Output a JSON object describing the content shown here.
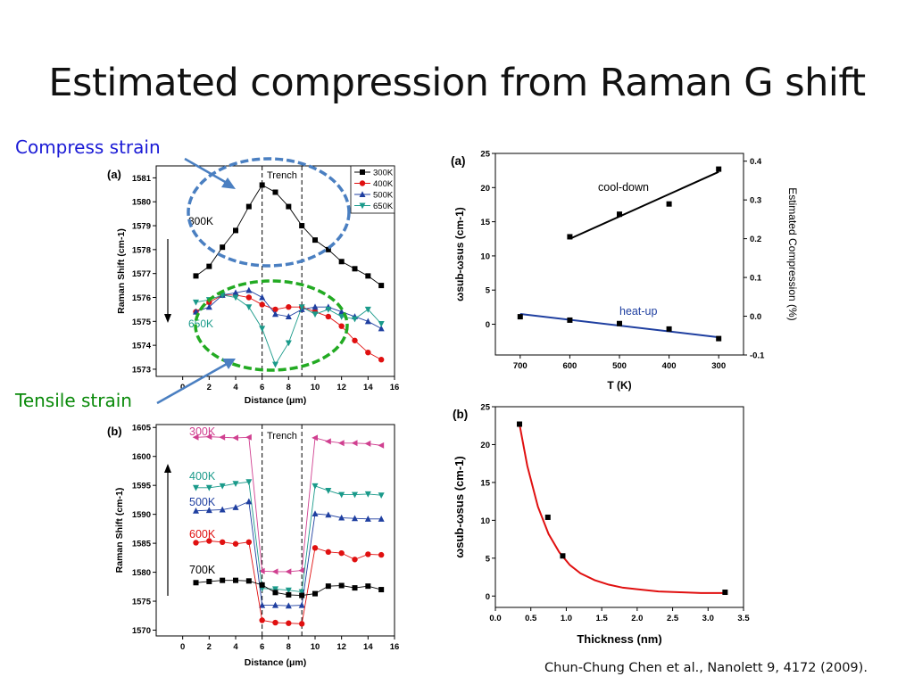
{
  "slide": {
    "title": "Estimated compression from Raman G shift",
    "compress_label": "Compress strain",
    "tensile_label": "Tensile strain",
    "citation": "Chun-Chung Chen et al., Nanolett 9, 4172 (2009)."
  },
  "colors": {
    "compress_label": "#1a1ad6",
    "tensile_label": "#0a8a0a",
    "ellipse_blue": "#4a7fc1",
    "ellipse_green": "#22aa22",
    "fit_red": "#e01010",
    "fit_blue": "#1f3fa0"
  },
  "chart_data": [
    {
      "id": "left-a",
      "panel": "(a)",
      "type": "line",
      "xlabel": "Distance (μm)",
      "ylabel": "Raman Shift (cm-1)",
      "xlim": [
        -2,
        16
      ],
      "ylim": [
        1572.7,
        1581.5
      ],
      "xticks": [
        0,
        2,
        4,
        6,
        8,
        10,
        12,
        14,
        16
      ],
      "yticks": [
        1573,
        1574,
        1575,
        1576,
        1577,
        1578,
        1579,
        1580,
        1581
      ],
      "trench_label": "Trench",
      "trench_x": [
        6,
        9
      ],
      "annotations": [
        "300K",
        "650K"
      ],
      "legend": [
        "300K",
        "400K",
        "500K",
        "650K"
      ],
      "series": [
        {
          "name": "300K",
          "color": "#000000",
          "marker": "square",
          "x": [
            1,
            2,
            3,
            4,
            5,
            6,
            7,
            8,
            9,
            10,
            11,
            12,
            13,
            14,
            15
          ],
          "y": [
            1576.9,
            1577.3,
            1578.1,
            1578.8,
            1579.8,
            1580.7,
            1580.4,
            1579.8,
            1579.0,
            1578.4,
            1578.0,
            1577.5,
            1577.2,
            1576.9,
            1576.5
          ]
        },
        {
          "name": "400K",
          "color": "#e01010",
          "marker": "circle",
          "x": [
            1,
            2,
            3,
            4,
            5,
            6,
            7,
            8,
            9,
            10,
            11,
            12,
            13,
            14,
            15
          ],
          "y": [
            1575.4,
            1575.8,
            1576.1,
            1576.1,
            1576.0,
            1575.7,
            1575.5,
            1575.6,
            1575.6,
            1575.4,
            1575.2,
            1574.8,
            1574.2,
            1573.7,
            1573.4
          ]
        },
        {
          "name": "500K",
          "color": "#1f3fa0",
          "marker": "triangle-up",
          "x": [
            1,
            2,
            3,
            4,
            5,
            6,
            7,
            8,
            9,
            10,
            11,
            12,
            13,
            14,
            15
          ],
          "y": [
            1575.4,
            1575.6,
            1576.1,
            1576.2,
            1576.3,
            1576.0,
            1575.3,
            1575.2,
            1575.5,
            1575.6,
            1575.6,
            1575.4,
            1575.2,
            1575.0,
            1574.7
          ]
        },
        {
          "name": "650K",
          "color": "#1a9a8a",
          "marker": "triangle-down",
          "x": [
            1,
            2,
            3,
            4,
            5,
            6,
            7,
            8,
            9,
            10,
            11,
            12,
            13,
            14,
            15
          ],
          "y": [
            1575.8,
            1575.9,
            1576.1,
            1576.0,
            1575.6,
            1574.7,
            1573.2,
            1574.1,
            1575.6,
            1575.3,
            1575.5,
            1575.2,
            1575.1,
            1575.5,
            1574.9
          ]
        }
      ]
    },
    {
      "id": "left-b",
      "panel": "(b)",
      "type": "line",
      "xlabel": "Distance (μm)",
      "ylabel": "Raman Shift (cm-1)",
      "xlim": [
        -2,
        16
      ],
      "ylim": [
        1569,
        1605.5
      ],
      "xticks": [
        0,
        2,
        4,
        6,
        8,
        10,
        12,
        14,
        16
      ],
      "yticks": [
        1570,
        1575,
        1580,
        1585,
        1590,
        1595,
        1600,
        1605
      ],
      "trench_label": "Trench",
      "trench_x": [
        6,
        9
      ],
      "annotations": [
        "300K",
        "400K",
        "500K",
        "600K",
        "700K"
      ],
      "series": [
        {
          "name": "300K",
          "color": "#d04090",
          "marker": "triangle-left",
          "x": [
            1,
            2,
            3,
            4,
            5,
            6,
            7,
            8,
            9,
            10,
            11,
            12,
            13,
            14,
            15
          ],
          "y": [
            1603.3,
            1603.4,
            1603.3,
            1603.2,
            1603.3,
            1580.2,
            1580.1,
            1580.1,
            1580.3,
            1603.2,
            1602.6,
            1602.3,
            1602.3,
            1602.2,
            1601.9
          ]
        },
        {
          "name": "400K",
          "color": "#1a9a8a",
          "marker": "triangle-down",
          "x": [
            1,
            2,
            3,
            4,
            5,
            6,
            7,
            8,
            9,
            10,
            11,
            12,
            13,
            14,
            15
          ],
          "y": [
            1594.6,
            1594.6,
            1594.9,
            1595.3,
            1595.6,
            1577.2,
            1577.1,
            1576.9,
            1576.6,
            1594.9,
            1594.1,
            1593.4,
            1593.4,
            1593.5,
            1593.3
          ]
        },
        {
          "name": "500K",
          "color": "#1f3fa0",
          "marker": "triangle-up",
          "x": [
            1,
            2,
            3,
            4,
            5,
            6,
            7,
            8,
            9,
            10,
            11,
            12,
            13,
            14,
            15
          ],
          "y": [
            1590.6,
            1590.7,
            1590.8,
            1591.2,
            1592.2,
            1574.3,
            1574.3,
            1574.2,
            1574.3,
            1590.1,
            1589.9,
            1589.4,
            1589.3,
            1589.2,
            1589.2
          ]
        },
        {
          "name": "600K",
          "color": "#e01010",
          "marker": "circle",
          "x": [
            1,
            2,
            3,
            4,
            5,
            6,
            7,
            8,
            9,
            10,
            11,
            12,
            13,
            14,
            15
          ],
          "y": [
            1585.1,
            1585.4,
            1585.2,
            1584.9,
            1585.2,
            1571.7,
            1571.3,
            1571.2,
            1571.1,
            1584.2,
            1583.5,
            1583.3,
            1582.2,
            1583.1,
            1583.0
          ]
        },
        {
          "name": "700K",
          "color": "#000000",
          "marker": "square",
          "x": [
            1,
            2,
            3,
            4,
            5,
            6,
            7,
            8,
            9,
            10,
            11,
            12,
            13,
            14,
            15
          ],
          "y": [
            1578.2,
            1578.4,
            1578.6,
            1578.6,
            1578.5,
            1577.8,
            1576.5,
            1576.1,
            1576.0,
            1576.3,
            1577.6,
            1577.7,
            1577.3,
            1577.6,
            1577.0
          ]
        }
      ]
    },
    {
      "id": "right-a",
      "panel": "(a)",
      "type": "scatter",
      "xlabel": "T (K)",
      "ylabel": "ωsub-ωsus (cm-1)",
      "y2label": "Estimated Compression (%)",
      "x_reversed": true,
      "xlim": [
        750,
        250
      ],
      "ylim": [
        -4.5,
        25
      ],
      "y2lim": [
        -0.1,
        0.42
      ],
      "xticks": [
        700,
        600,
        500,
        400,
        300
      ],
      "yticks": [
        0,
        5,
        10,
        15,
        20,
        25
      ],
      "y2ticks": [
        -0.1,
        0.0,
        0.1,
        0.2,
        0.3,
        0.4
      ],
      "annotations": [
        "cool-down",
        "heat-up"
      ],
      "series": [
        {
          "name": "cool-down",
          "color": "#000000",
          "marker": "square",
          "x": [
            600,
            500,
            400,
            300
          ],
          "y": [
            12.8,
            16.1,
            17.6,
            22.7
          ],
          "fit": {
            "x": [
              600,
              300
            ],
            "y": [
              12.5,
              22.3
            ]
          }
        },
        {
          "name": "heat-up",
          "color": "#000000",
          "fit_color": "#1f3fa0",
          "marker": "square",
          "x": [
            700,
            600,
            500,
            400,
            300
          ],
          "y": [
            1.1,
            0.6,
            0.1,
            -0.7,
            -2.1
          ],
          "fit": {
            "x": [
              700,
              300
            ],
            "y": [
              1.5,
              -1.9
            ]
          }
        }
      ]
    },
    {
      "id": "right-b",
      "panel": "(b)",
      "type": "scatter",
      "xlabel": "Thickness (nm)",
      "ylabel": "ωsub-ωsus (cm-1)",
      "xlim": [
        0.0,
        3.5
      ],
      "ylim": [
        -1.5,
        25
      ],
      "xticks": [
        0.0,
        0.5,
        1.0,
        1.5,
        2.0,
        2.5,
        3.0,
        3.5
      ],
      "yticks": [
        0,
        5,
        10,
        15,
        20,
        25
      ],
      "series": [
        {
          "name": "data",
          "color": "#000000",
          "marker": "square",
          "x": [
            0.34,
            0.74,
            0.95,
            3.24
          ],
          "y": [
            22.7,
            10.4,
            5.3,
            0.5
          ]
        },
        {
          "name": "fit",
          "color": "#e01010",
          "type": "line",
          "x": [
            0.34,
            0.45,
            0.6,
            0.75,
            0.9,
            1.05,
            1.2,
            1.4,
            1.6,
            1.8,
            2.0,
            2.3,
            2.6,
            2.9,
            3.24
          ],
          "y": [
            22.7,
            17.2,
            11.8,
            8.2,
            5.8,
            4.1,
            3.0,
            2.1,
            1.5,
            1.1,
            0.9,
            0.6,
            0.5,
            0.4,
            0.4
          ]
        }
      ]
    }
  ]
}
